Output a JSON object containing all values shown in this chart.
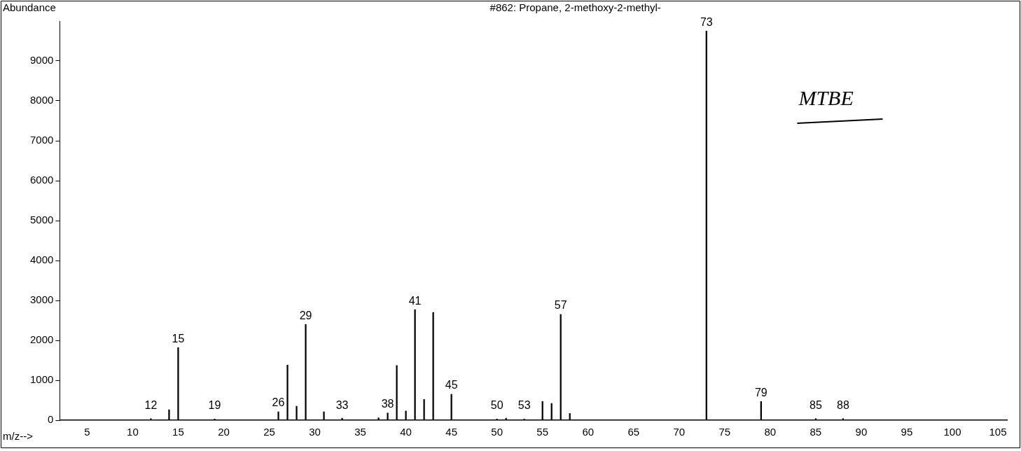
{
  "chart_data": {
    "type": "bar",
    "title": "#862: Propane, 2-methoxy-2-methyl-",
    "xlabel": "m/z-->",
    "ylabel": "Abundance",
    "x": [
      12,
      14,
      15,
      19,
      26,
      27,
      28,
      29,
      31,
      33,
      37,
      38,
      39,
      40,
      41,
      42,
      43,
      45,
      50,
      51,
      53,
      55,
      56,
      57,
      58,
      73,
      79,
      85,
      88
    ],
    "values": [
      40,
      260,
      1820,
      30,
      210,
      1380,
      350,
      2400,
      210,
      50,
      60,
      180,
      1370,
      230,
      2770,
      520,
      2700,
      650,
      30,
      50,
      30,
      470,
      420,
      2650,
      170,
      9750,
      470,
      40,
      40
    ],
    "color": "#000000",
    "xlim": [
      2,
      106
    ],
    "xticks": [
      5,
      10,
      15,
      20,
      25,
      30,
      35,
      40,
      45,
      50,
      55,
      60,
      65,
      70,
      75,
      80,
      85,
      90,
      95,
      100,
      105
    ],
    "ylim": [
      0,
      10000
    ],
    "yticks": [
      0,
      1000,
      2000,
      3000,
      4000,
      5000,
      6000,
      7000,
      8000,
      9000
    ],
    "grid": false,
    "legend": false,
    "annotations": [
      {
        "text": "12",
        "x": 12,
        "y": 40
      },
      {
        "text": "15",
        "x": 15,
        "y": 1820
      },
      {
        "text": "19",
        "x": 19,
        "y": 30
      },
      {
        "text": "26",
        "x": 26,
        "y": 210
      },
      {
        "text": "29",
        "x": 29,
        "y": 2400
      },
      {
        "text": "33",
        "x": 33,
        "y": 50
      },
      {
        "text": "38",
        "x": 38,
        "y": 180
      },
      {
        "text": "41",
        "x": 41,
        "y": 2770
      },
      {
        "text": "45",
        "x": 45,
        "y": 650
      },
      {
        "text": "50",
        "x": 50,
        "y": 30
      },
      {
        "text": "53",
        "x": 53,
        "y": 30
      },
      {
        "text": "57",
        "x": 57,
        "y": 2650
      },
      {
        "text": "73",
        "x": 73,
        "y": 9750
      },
      {
        "text": "79",
        "x": 79,
        "y": 470
      },
      {
        "text": "85",
        "x": 85,
        "y": 40
      },
      {
        "text": "88",
        "x": 88,
        "y": 40
      },
      "MTBE"
    ]
  }
}
